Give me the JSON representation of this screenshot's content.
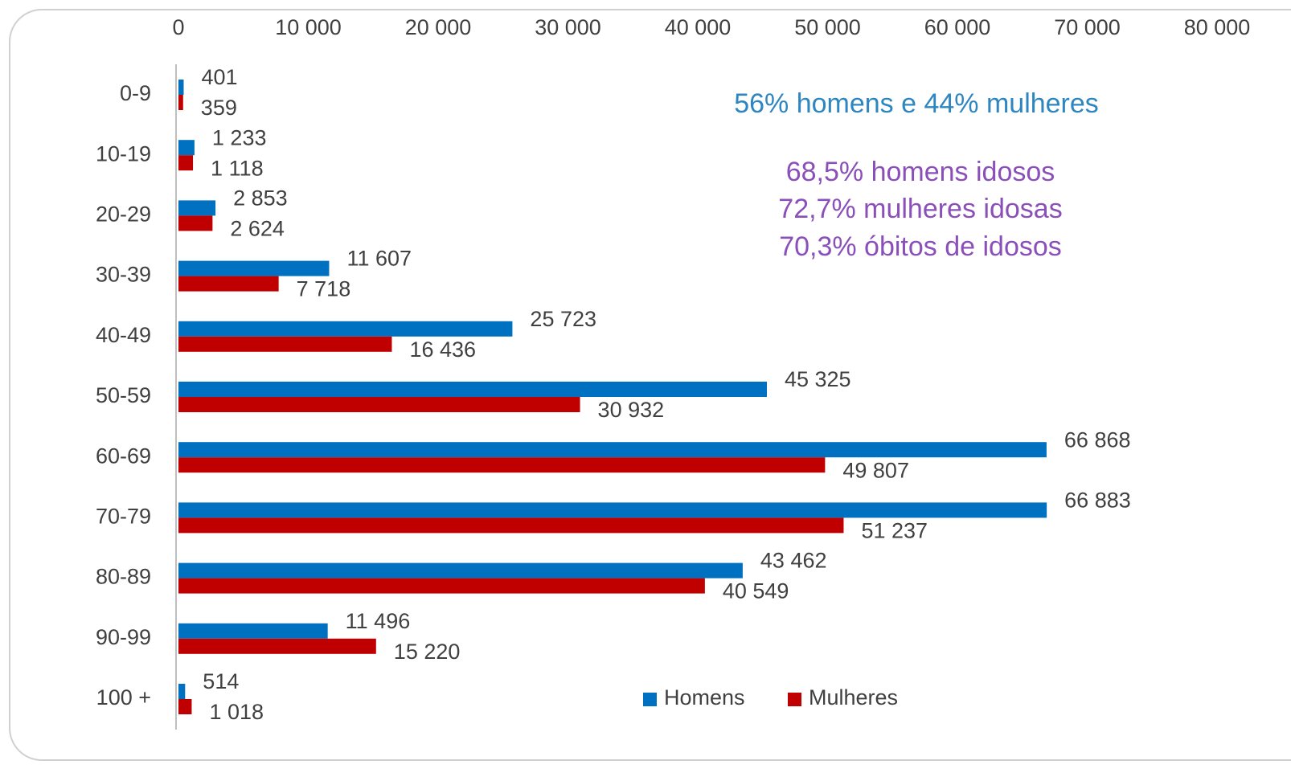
{
  "chart_data": {
    "type": "hbar",
    "categories": [
      "0-9",
      "10-19",
      "20-29",
      "30-39",
      "40-49",
      "50-59",
      "60-69",
      "70-79",
      "80-89",
      "90-99",
      "100 +"
    ],
    "series": [
      {
        "name": "Homens",
        "color": "#0070c0",
        "values": [
          401,
          1233,
          2853,
          11607,
          25723,
          45325,
          66868,
          66883,
          43462,
          11496,
          514
        ],
        "value_labels": [
          "401",
          "1 233",
          "2 853",
          "11 607",
          "25 723",
          "45 325",
          "66 868",
          "66 883",
          "43 462",
          "11 496",
          "514"
        ]
      },
      {
        "name": "Mulheres",
        "color": "#c00000",
        "values": [
          359,
          1118,
          2624,
          7718,
          16436,
          30932,
          49807,
          51237,
          40549,
          15220,
          1018
        ],
        "value_labels": [
          "359",
          "1 118",
          "2 624",
          "7 718",
          "16 436",
          "30 932",
          "49 807",
          "51 237",
          "40 549",
          "15 220",
          "1 018"
        ]
      }
    ],
    "xlim": [
      0,
      80000
    ],
    "xticks": [
      0,
      {
        "value": 10000,
        "label": "10 000"
      },
      {
        "value": 20000,
        "label": "20 000"
      },
      {
        "value": 30000,
        "label": "30 000"
      },
      {
        "value": 40000,
        "label": "40 000"
      },
      {
        "value": 50000,
        "label": "50 000"
      },
      {
        "value": 60000,
        "label": "60 000"
      },
      {
        "value": 70000,
        "label": "70 000"
      },
      {
        "value": 80000,
        "label": "80 000"
      }
    ],
    "xaxis_position": "top",
    "legend": "bottom-right",
    "annotations": [
      {
        "text": "56% homens e 44% mulheres",
        "color": "#2e86c1"
      },
      {
        "text": "68,5% homens idosos",
        "color": "#8a4fb8"
      },
      {
        "text": "72,7% mulheres idosas",
        "color": "#8a4fb8"
      },
      {
        "text": "70,3% óbitos de idosos",
        "color": "#8a4fb8"
      }
    ]
  }
}
